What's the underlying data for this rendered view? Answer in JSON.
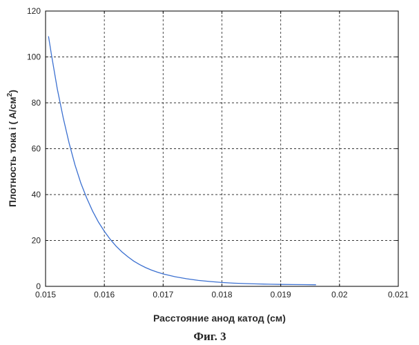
{
  "caption": "Фиг. 3",
  "chart_data": {
    "type": "line",
    "xlabel": "Расстояние анод катод (см)",
    "ylabel_main": "Плотность тока i ( A/см",
    "ylabel_sup": "2",
    "ylabel_tail": ")",
    "xlim": [
      0.015,
      0.021
    ],
    "ylim": [
      0,
      120
    ],
    "xticks": [
      0.015,
      0.016,
      0.017,
      0.018,
      0.019,
      0.02,
      0.021
    ],
    "xtick_labels": [
      "0.015",
      "0.016",
      "0.017",
      "0.018",
      "0.019",
      "0.02",
      "0.021"
    ],
    "yticks": [
      0,
      20,
      40,
      60,
      80,
      100,
      120
    ],
    "ytick_labels": [
      "0",
      "20",
      "40",
      "60",
      "80",
      "100",
      "120"
    ],
    "grid": true,
    "line_color": "#3a6fd0",
    "series": [
      {
        "x": [
          0.01505,
          0.0151,
          0.0152,
          0.0153,
          0.0154,
          0.0155,
          0.0156,
          0.0157,
          0.0158,
          0.0159,
          0.016,
          0.0161,
          0.0162,
          0.0163,
          0.0164,
          0.0165,
          0.0166,
          0.0167,
          0.0168,
          0.0169,
          0.017,
          0.0172,
          0.0174,
          0.0176,
          0.0178,
          0.018,
          0.0182,
          0.0184,
          0.0186,
          0.0188,
          0.019,
          0.0192,
          0.0194,
          0.0196
        ],
        "y": [
          109,
          101,
          86,
          73.5,
          62.5,
          53,
          45,
          38.5,
          32.8,
          28,
          24,
          20.5,
          17.5,
          15,
          12.9,
          11,
          9.5,
          8.2,
          7.1,
          6.2,
          5.4,
          4.2,
          3.3,
          2.6,
          2.1,
          1.7,
          1.4,
          1.2,
          1.05,
          0.95,
          0.85,
          0.8,
          0.75,
          0.7
        ]
      }
    ]
  }
}
